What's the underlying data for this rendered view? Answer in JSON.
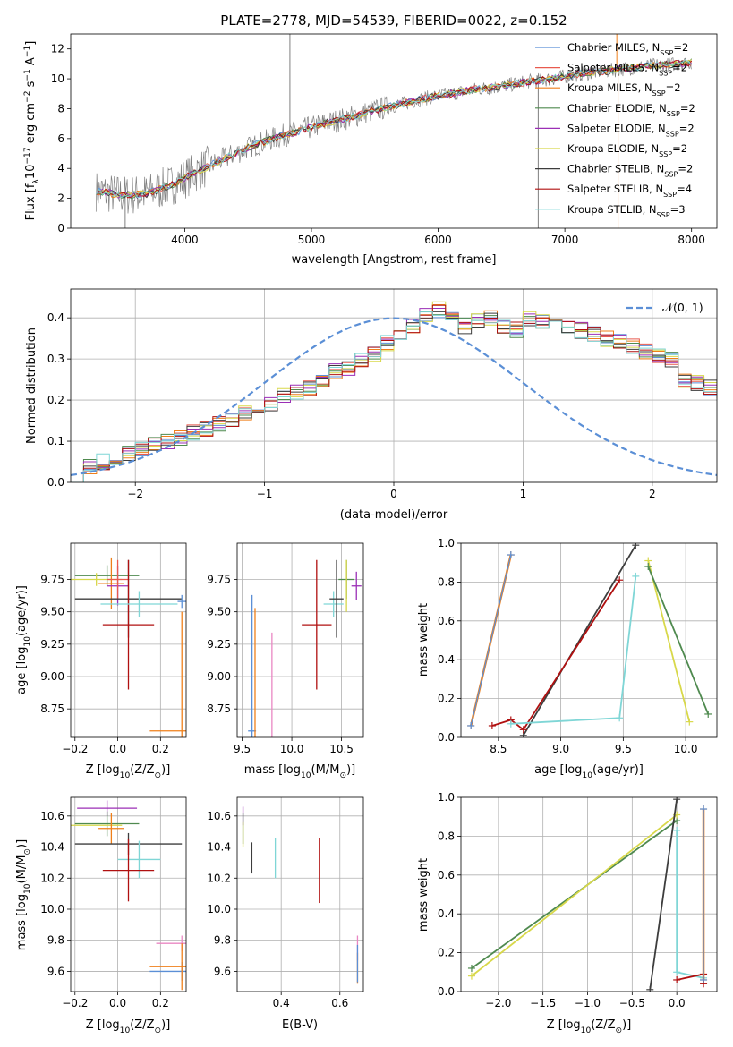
{
  "page_title": "PLATE=2778, MJD=54539, FIBERID=0022, z=0.152",
  "colors": {
    "c0": "#5b8fd6",
    "c1": "#e85a4f",
    "c2": "#ef7f1a",
    "c3": "#4f8a4f",
    "c4": "#9b2fb6",
    "c5": "#d8d84a",
    "c6": "#3d3d3d",
    "c7": "#b01010",
    "c8": "#7fd6d6",
    "c9": "#e987c3",
    "data": "#808080",
    "gauss": "#5b8fd6",
    "grid": "#b0b0b0"
  },
  "chart_data": [
    {
      "id": "spectrum",
      "type": "line",
      "title": "PLATE=2778, MJD=54539, FIBERID=0022, z=0.152",
      "xlabel": "wavelength [Angstrom, rest frame]",
      "ylabel": "Flux [f",
      "ylabel_sub": "λ",
      "ylabel_rest": "10",
      "ylabel_exp": "−17",
      "ylabel_units": " erg cm",
      "ylabel_units_exp": "−2",
      "ylabel_s": " s",
      "ylabel_s_exp": "−1",
      "ylabel_A": " A",
      "ylabel_A_exp": "−1",
      "ylabel_end": "]",
      "xlim": [
        3100,
        8200
      ],
      "ylim": [
        0,
        13
      ],
      "xticks": [
        4000,
        5000,
        6000,
        7000,
        8000
      ],
      "yticks": [
        0,
        2,
        4,
        6,
        8,
        10,
        12
      ],
      "grid": false,
      "legend_position": "upper-right",
      "continuum": {
        "x": [
          3300,
          3500,
          3700,
          3900,
          4100,
          4300,
          4500,
          4700,
          4900,
          5100,
          5300,
          5500,
          5700,
          5900,
          6100,
          6300,
          6500,
          6700,
          6900,
          7100,
          7300,
          7500,
          7700,
          7900,
          8000
        ],
        "y": [
          2.5,
          2.2,
          2.3,
          2.9,
          3.8,
          4.6,
          5.4,
          6.0,
          6.5,
          7.0,
          7.4,
          7.9,
          8.3,
          8.7,
          9.0,
          9.3,
          9.5,
          9.8,
          10.0,
          10.3,
          10.5,
          10.7,
          10.9,
          11.0,
          11.1
        ]
      },
      "data_noise_note": "",
      "series": [
        {
          "name_main": "Chabrier MILES, N",
          "name_sub": "SSP",
          "name_end": "=2",
          "color_key": "c0"
        },
        {
          "name_main": "Salpeter MILES, N",
          "name_sub": "SSP",
          "name_end": "=2",
          "color_key": "c1"
        },
        {
          "name_main": "Kroupa MILES, N",
          "name_sub": "SSP",
          "name_end": "=2",
          "color_key": "c2"
        },
        {
          "name_main": "Chabrier ELODIE, N",
          "name_sub": "SSP",
          "name_end": "=2",
          "color_key": "c3"
        },
        {
          "name_main": "Salpeter ELODIE, N",
          "name_sub": "SSP",
          "name_end": "=2",
          "color_key": "c4"
        },
        {
          "name_main": "Kroupa ELODIE, N",
          "name_sub": "SSP",
          "name_end": "=2",
          "color_key": "c5"
        },
        {
          "name_main": "Chabrier STELIB, N",
          "name_sub": "SSP",
          "name_end": "=2",
          "color_key": "c6"
        },
        {
          "name_main": "Salpeter STELIB, N",
          "name_sub": "SSP",
          "name_end": "=4",
          "color_key": "c7"
        },
        {
          "name_main": "Kroupa STELIB, N",
          "name_sub": "SSP",
          "name_end": "=3",
          "color_key": "c8"
        }
      ]
    },
    {
      "id": "residuals",
      "type": "line",
      "xlabel": "(data-model)/error",
      "ylabel": "Normed distribution",
      "xlim": [
        -2.5,
        2.5
      ],
      "ylim": [
        0,
        0.47
      ],
      "xticks": [
        -2,
        -1,
        0,
        1,
        2
      ],
      "yticks": [
        0.0,
        0.1,
        0.2,
        0.3,
        0.4
      ],
      "grid": true,
      "legend_position": "upper-right",
      "gauss_label": "𝒩(0, 1)",
      "bin_width": 0.1,
      "envelope": [
        0.02,
        0.04,
        0.05,
        0.06,
        0.07,
        0.08,
        0.09,
        0.1,
        0.11,
        0.12,
        0.13,
        0.14,
        0.15,
        0.17,
        0.18,
        0.19,
        0.21,
        0.22,
        0.23,
        0.25,
        0.27,
        0.28,
        0.3,
        0.31,
        0.34,
        0.36,
        0.38,
        0.41,
        0.42,
        0.4,
        0.38,
        0.39,
        0.4,
        0.38,
        0.37,
        0.4,
        0.39,
        0.4,
        0.38,
        0.37,
        0.36,
        0.35,
        0.34,
        0.33,
        0.32,
        0.31,
        0.3,
        0.25,
        0.24,
        0.23,
        0.22,
        0.2,
        0.19,
        0.18,
        0.17,
        0.16,
        0.14,
        0.13,
        0.11,
        0.1,
        0.09,
        0.08,
        0.07,
        0.06,
        0.05,
        0.04,
        0.04,
        0.04,
        0.03,
        0.03,
        0.03,
        0.03,
        0.02,
        0.03,
        0.03,
        0.03,
        0.02,
        0.02,
        0.02,
        0.02
      ],
      "hist_x_start": -2.5
    },
    {
      "id": "age_vs_z",
      "type": "scatter",
      "xlabel": "Z [log",
      "xlabel_sub": "10",
      "xlabel_rest": "(Z/Z",
      "xlabel_sub2": "⊙",
      "xlabel_end": ")]",
      "ylabel": "age  [log",
      "ylabel_sub": "10",
      "ylabel_rest": "(age/yr)]",
      "xlim": [
        -0.22,
        0.32
      ],
      "ylim": [
        8.53,
        10.03
      ],
      "xticks": [
        -0.2,
        0.0,
        0.2
      ],
      "yticks": [
        8.75,
        9.0,
        9.25,
        9.5,
        9.75
      ],
      "grid": true,
      "points": [
        {
          "x": -0.05,
          "y": 9.78,
          "xerr": 0.15,
          "yerr": 0.08,
          "color_key": "c3"
        },
        {
          "x": -0.1,
          "y": 9.75,
          "xerr": 0.12,
          "yerr": 0.05,
          "color_key": "c5"
        },
        {
          "x": -0.03,
          "y": 9.72,
          "xerr": 0.06,
          "yerr": 0.2,
          "color_key": "c2"
        },
        {
          "x": 0.0,
          "y": 9.7,
          "xerr": 0.05,
          "yerr": 0.15,
          "color_key": "c4"
        },
        {
          "x": 0.0,
          "y": 9.75,
          "xerr": 0.05,
          "yerr": 0.15,
          "color_key": "c1"
        },
        {
          "x": 0.05,
          "y": 9.6,
          "xerr": 0.25,
          "yerr": 0.3,
          "color_key": "c6"
        },
        {
          "x": 0.05,
          "y": 9.4,
          "xerr": 0.12,
          "yerr": 0.5,
          "color_key": "c7"
        },
        {
          "x": 0.1,
          "y": 9.56,
          "xerr": 0.18,
          "yerr": 0.1,
          "color_key": "c8"
        },
        {
          "x": 0.3,
          "y": 9.58,
          "xerr": 0.02,
          "yerr": 0.05,
          "color_key": "c0"
        },
        {
          "x": 0.3,
          "y": 8.58,
          "xerr": 0.15,
          "yerr": 0.92,
          "color_key": "c2"
        }
      ]
    },
    {
      "id": "age_vs_mass",
      "type": "scatter",
      "xlabel": "mass [log",
      "xlabel_sub": "10",
      "xlabel_rest": "(M/M",
      "xlabel_sub2": "⊙",
      "xlabel_end": ")]",
      "xlim": [
        9.45,
        10.72
      ],
      "ylim": [
        8.53,
        10.03
      ],
      "xticks": [
        9.5,
        10.0,
        10.5
      ],
      "yticks": [
        8.75,
        9.0,
        9.25,
        9.5,
        9.75
      ],
      "grid": true,
      "points": [
        {
          "x": 9.6,
          "y": 8.58,
          "xerr": 0.04,
          "yerr": 1.05,
          "color_key": "c0"
        },
        {
          "x": 9.63,
          "y": 8.58,
          "xerr": 0.0,
          "yerr": 0.95,
          "color_key": "c2"
        },
        {
          "x": 9.8,
          "y": 8.58,
          "xerr": 0.0,
          "yerr": 0.76,
          "color_key": "c9"
        },
        {
          "x": 10.25,
          "y": 9.4,
          "xerr": 0.15,
          "yerr": 0.5,
          "color_key": "c7"
        },
        {
          "x": 10.42,
          "y": 9.56,
          "xerr": 0.1,
          "yerr": 0.1,
          "color_key": "c8"
        },
        {
          "x": 10.45,
          "y": 9.6,
          "xerr": 0.07,
          "yerr": 0.3,
          "color_key": "c6"
        },
        {
          "x": 10.55,
          "y": 9.75,
          "xerr": 0.08,
          "yerr": 0.15,
          "color_key": "c3"
        },
        {
          "x": 10.55,
          "y": 9.7,
          "xerr": 0.0,
          "yerr": 0.2,
          "color_key": "c5"
        },
        {
          "x": 10.65,
          "y": 9.7,
          "xerr": 0.05,
          "yerr": 0.11,
          "color_key": "c4"
        }
      ]
    },
    {
      "id": "mass_weight_vs_age",
      "type": "line",
      "xlabel": "age  [log",
      "xlabel_sub": "10",
      "xlabel_rest": "(age/yr)]",
      "ylabel": "mass weight",
      "xlim": [
        8.2,
        10.25
      ],
      "ylim": [
        0,
        1
      ],
      "xticks": [
        8.5,
        9.0,
        9.5,
        10.0
      ],
      "yticks": [
        0.0,
        0.2,
        0.4,
        0.6,
        0.8,
        1.0
      ],
      "grid": true,
      "series": [
        {
          "color_key": "c2",
          "width": 2.5,
          "x": [
            8.28,
            8.6
          ],
          "y": [
            0.06,
            0.94
          ]
        },
        {
          "color_key": "c0",
          "width": 1.2,
          "x": [
            8.28,
            8.6
          ],
          "y": [
            0.06,
            0.94
          ]
        },
        {
          "color_key": "c5",
          "width": 1.8,
          "x": [
            9.7,
            10.03
          ],
          "y": [
            0.91,
            0.08
          ]
        },
        {
          "color_key": "c3",
          "width": 1.8,
          "x": [
            9.7,
            10.18
          ],
          "y": [
            0.88,
            0.12
          ]
        },
        {
          "color_key": "c6",
          "width": 1.8,
          "x": [
            8.7,
            9.6
          ],
          "y": [
            0.01,
            0.99
          ]
        },
        {
          "color_key": "c7",
          "width": 1.8,
          "x": [
            8.45,
            8.6,
            8.7,
            9.47
          ],
          "y": [
            0.06,
            0.09,
            0.04,
            0.81
          ]
        },
        {
          "color_key": "c8",
          "width": 1.8,
          "x": [
            8.6,
            9.47,
            9.6
          ],
          "y": [
            0.07,
            0.1,
            0.83
          ]
        }
      ]
    },
    {
      "id": "mass_vs_z",
      "type": "scatter",
      "xlabel": "Z [log",
      "xlabel_sub": "10",
      "xlabel_rest": "(Z/Z",
      "xlabel_sub2": "⊙",
      "xlabel_end": ")]",
      "ylabel": "mass [log",
      "ylabel_sub": "10",
      "ylabel_rest": "(M/M",
      "ylabel_sub2": "⊙",
      "ylabel_end": ")]",
      "xlim": [
        -0.22,
        0.32
      ],
      "ylim": [
        9.47,
        10.72
      ],
      "xticks": [
        -0.2,
        0.0,
        0.2
      ],
      "yticks": [
        9.6,
        9.8,
        10.0,
        10.2,
        10.4,
        10.6
      ],
      "grid": true,
      "points": [
        {
          "x": -0.05,
          "y": 10.65,
          "xerr": 0.14,
          "yerr": 0.05,
          "color_key": "c4"
        },
        {
          "x": -0.05,
          "y": 10.55,
          "xerr": 0.15,
          "yerr": 0.08,
          "color_key": "c3"
        },
        {
          "x": -0.1,
          "y": 10.54,
          "xerr": 0.12,
          "yerr": 0.0,
          "color_key": "c5"
        },
        {
          "x": -0.03,
          "y": 10.52,
          "xerr": 0.06,
          "yerr": 0.1,
          "color_key": "c2"
        },
        {
          "x": 0.05,
          "y": 10.42,
          "xerr": 0.25,
          "yerr": 0.07,
          "color_key": "c6"
        },
        {
          "x": 0.1,
          "y": 10.32,
          "xerr": 0.1,
          "yerr": 0.12,
          "color_key": "c8"
        },
        {
          "x": 0.05,
          "y": 10.25,
          "xerr": 0.12,
          "yerr": 0.2,
          "color_key": "c7"
        },
        {
          "x": 0.3,
          "y": 9.78,
          "xerr": 0.12,
          "yerr": 0.05,
          "color_key": "c9"
        },
        {
          "x": 0.3,
          "y": 9.6,
          "xerr": 0.15,
          "yerr": 0.06,
          "color_key": "c0"
        },
        {
          "x": 0.3,
          "y": 9.63,
          "xerr": 0.15,
          "yerr": 0.15,
          "color_key": "c2"
        }
      ]
    },
    {
      "id": "mass_vs_ebv",
      "type": "scatter",
      "xlabel": "E(B-V)",
      "xlim": [
        0.25,
        0.68
      ],
      "ylim": [
        9.47,
        10.72
      ],
      "xticks": [
        0.4,
        0.6
      ],
      "yticks": [
        9.6,
        9.8,
        10.0,
        10.2,
        10.4,
        10.6
      ],
      "grid": true,
      "points": [
        {
          "x": 0.27,
          "y": 10.6,
          "yerr": 0.06,
          "color_key": "c4"
        },
        {
          "x": 0.27,
          "y": 10.52,
          "yerr": 0.1,
          "color_key": "c3"
        },
        {
          "x": 0.27,
          "y": 10.48,
          "yerr": 0.08,
          "color_key": "c5"
        },
        {
          "x": 0.3,
          "y": 10.33,
          "yerr": 0.1,
          "color_key": "c6"
        },
        {
          "x": 0.38,
          "y": 10.33,
          "yerr": 0.13,
          "color_key": "c8"
        },
        {
          "x": 0.53,
          "y": 10.25,
          "yerr": 0.21,
          "color_key": "c7"
        },
        {
          "x": 0.66,
          "y": 9.75,
          "yerr": 0.08,
          "color_key": "c9"
        },
        {
          "x": 0.66,
          "y": 9.62,
          "yerr": 0.1,
          "color_key": "c2"
        },
        {
          "x": 0.66,
          "y": 9.65,
          "yerr": 0.12,
          "color_key": "c0"
        }
      ]
    },
    {
      "id": "mass_weight_vs_z",
      "type": "line",
      "xlabel": "Z [log",
      "xlabel_sub": "10",
      "xlabel_rest": "(Z/Z",
      "xlabel_sub2": "⊙",
      "xlabel_end": ")]",
      "ylabel": "mass weight",
      "xlim": [
        -2.42,
        0.45
      ],
      "ylim": [
        0,
        1
      ],
      "xticks": [
        -2.0,
        -1.5,
        -1.0,
        -0.5,
        0.0
      ],
      "yticks": [
        0.0,
        0.2,
        0.4,
        0.6,
        0.8,
        1.0
      ],
      "grid": true,
      "series": [
        {
          "color_key": "c3",
          "width": 1.8,
          "x": [
            -2.3,
            0.0
          ],
          "y": [
            0.12,
            0.88
          ]
        },
        {
          "color_key": "c5",
          "width": 1.8,
          "x": [
            -2.3,
            0.0
          ],
          "y": [
            0.08,
            0.91
          ]
        },
        {
          "color_key": "c6",
          "width": 1.8,
          "x": [
            -0.3,
            0.0
          ],
          "y": [
            0.01,
            0.99
          ]
        },
        {
          "color_key": "c8",
          "width": 1.8,
          "x": [
            0.0,
            0.0,
            0.3
          ],
          "y": [
            0.83,
            0.1,
            0.07
          ]
        },
        {
          "color_key": "c7",
          "width": 1.8,
          "x": [
            0.0,
            0.3,
            0.3
          ],
          "y": [
            0.06,
            0.09,
            0.04
          ]
        },
        {
          "color_key": "c2",
          "width": 2.5,
          "x": [
            0.3,
            0.3
          ],
          "y": [
            0.06,
            0.94
          ]
        },
        {
          "color_key": "c0",
          "width": 1.2,
          "x": [
            0.3,
            0.3
          ],
          "y": [
            0.06,
            0.94
          ]
        }
      ]
    }
  ]
}
